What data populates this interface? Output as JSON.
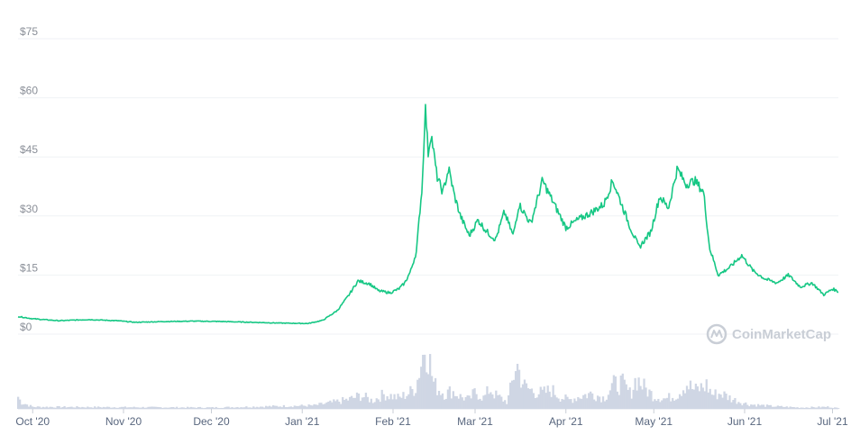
{
  "watermark": {
    "text": "CoinMarketCap",
    "icon": "coinmarketcap-logo-icon"
  },
  "colors": {
    "price_line": "#16c784",
    "volume_fill": "#cfd6e4",
    "grid": "#eff2f5",
    "axis_text": "#8a8f98"
  },
  "chart_data": [
    {
      "type": "line",
      "title": "",
      "xlabel": "",
      "ylabel": "",
      "ylim": [
        0,
        75
      ],
      "yticks": [
        0,
        15,
        30,
        45,
        60,
        75
      ],
      "ytick_labels": [
        "$0",
        "$15",
        "$30",
        "$45",
        "$60",
        "$75"
      ],
      "xlim": [
        "2020-09-26",
        "2021-07-03"
      ],
      "xticks": [
        "2020-10-01",
        "2020-11-01",
        "2020-12-01",
        "2021-01-01",
        "2021-02-01",
        "2021-03-01",
        "2021-04-01",
        "2021-05-01",
        "2021-06-01",
        "2021-07-01"
      ],
      "xtick_labels": [
        "Oct '20",
        "Nov '20",
        "Dec '20",
        "Jan '21",
        "Feb '21",
        "Mar '21",
        "Apr '21",
        "May '21",
        "Jun '21",
        "Jul '21"
      ],
      "grid": true,
      "series": [
        {
          "x": [
            "2020-09-26",
            "2020-10-01",
            "2020-10-10",
            "2020-10-20",
            "2020-10-30",
            "2020-11-05",
            "2020-11-15",
            "2020-11-25",
            "2020-12-05",
            "2020-12-15",
            "2020-12-25",
            "2021-01-03",
            "2021-01-08",
            "2021-01-13",
            "2021-01-17",
            "2021-01-20",
            "2021-01-24",
            "2021-01-27",
            "2021-01-31",
            "2021-02-03",
            "2021-02-05",
            "2021-02-07",
            "2021-02-09",
            "2021-02-10",
            "2021-02-11",
            "2021-02-12",
            "2021-02-13",
            "2021-02-14",
            "2021-02-16",
            "2021-02-18",
            "2021-02-20",
            "2021-02-22",
            "2021-02-24",
            "2021-02-27",
            "2021-03-02",
            "2021-03-05",
            "2021-03-08",
            "2021-03-11",
            "2021-03-14",
            "2021-03-16",
            "2021-03-20",
            "2021-03-24",
            "2021-03-28",
            "2021-04-01",
            "2021-04-05",
            "2021-04-10",
            "2021-04-14",
            "2021-04-17",
            "2021-04-20",
            "2021-04-23",
            "2021-04-26",
            "2021-04-30",
            "2021-05-03",
            "2021-05-06",
            "2021-05-09",
            "2021-05-12",
            "2021-05-15",
            "2021-05-18",
            "2021-05-20",
            "2021-05-23",
            "2021-05-27",
            "2021-05-31",
            "2021-06-04",
            "2021-06-08",
            "2021-06-12",
            "2021-06-16",
            "2021-06-20",
            "2021-06-24",
            "2021-06-28",
            "2021-07-01",
            "2021-07-03"
          ],
          "y": [
            4.5,
            3.9,
            3.4,
            3.7,
            3.4,
            3.0,
            3.2,
            3.3,
            3.2,
            3.0,
            2.8,
            2.7,
            3.5,
            6.0,
            10.0,
            13.5,
            12.8,
            11.0,
            10.5,
            11.5,
            13.0,
            16.0,
            21.0,
            30.0,
            38.0,
            58.0,
            46.0,
            51.0,
            40.0,
            36.0,
            42.0,
            35.0,
            30.0,
            25.0,
            29.0,
            26.0,
            24.0,
            31.0,
            25.0,
            33.0,
            28.0,
            39.0,
            33.0,
            27.0,
            29.0,
            31.0,
            33.0,
            39.0,
            33.0,
            27.0,
            22.0,
            26.0,
            35.0,
            32.0,
            42.0,
            38.0,
            39.0,
            36.0,
            22.0,
            15.0,
            17.0,
            20.0,
            16.0,
            14.0,
            13.0,
            15.0,
            12.0,
            13.0,
            10.0,
            11.5,
            10.8
          ]
        }
      ]
    },
    {
      "type": "area",
      "title": "",
      "xlim": [
        "2020-09-26",
        "2021-07-03"
      ],
      "series": [
        {
          "x": [
            "2020-09-26",
            "2020-09-27",
            "2020-10-01",
            "2020-12-01",
            "2021-01-05",
            "2021-01-12",
            "2021-01-17",
            "2021-01-21",
            "2021-01-25",
            "2021-01-29",
            "2021-02-03",
            "2021-02-07",
            "2021-02-09",
            "2021-02-10",
            "2021-02-11",
            "2021-02-12",
            "2021-02-13",
            "2021-02-14",
            "2021-02-15",
            "2021-02-17",
            "2021-02-19",
            "2021-02-21",
            "2021-02-24",
            "2021-02-27",
            "2021-03-01",
            "2021-03-04",
            "2021-03-06",
            "2021-03-08",
            "2021-03-10",
            "2021-03-12",
            "2021-03-14",
            "2021-03-15",
            "2021-03-16",
            "2021-03-18",
            "2021-03-21",
            "2021-03-24",
            "2021-03-27",
            "2021-03-30",
            "2021-04-02",
            "2021-04-06",
            "2021-04-10",
            "2021-04-14",
            "2021-04-17",
            "2021-04-20",
            "2021-04-23",
            "2021-04-25",
            "2021-04-28",
            "2021-05-01",
            "2021-05-05",
            "2021-05-09",
            "2021-05-12",
            "2021-05-15",
            "2021-05-19",
            "2021-05-21",
            "2021-05-24",
            "2021-05-28",
            "2021-06-02",
            "2021-06-10",
            "2021-06-20",
            "2021-06-30",
            "2021-07-03"
          ],
          "y": [
            18,
            10,
            3,
            2,
            5,
            10,
            14,
            20,
            12,
            22,
            16,
            25,
            35,
            60,
            75,
            100,
            85,
            55,
            35,
            28,
            22,
            27,
            18,
            14,
            25,
            16,
            30,
            20,
            15,
            10,
            45,
            70,
            55,
            32,
            26,
            23,
            28,
            18,
            13,
            19,
            23,
            16,
            35,
            38,
            22,
            46,
            30,
            19,
            15,
            21,
            38,
            27,
            35,
            21,
            23,
            14,
            7,
            4,
            2,
            3,
            1
          ]
        }
      ]
    }
  ]
}
